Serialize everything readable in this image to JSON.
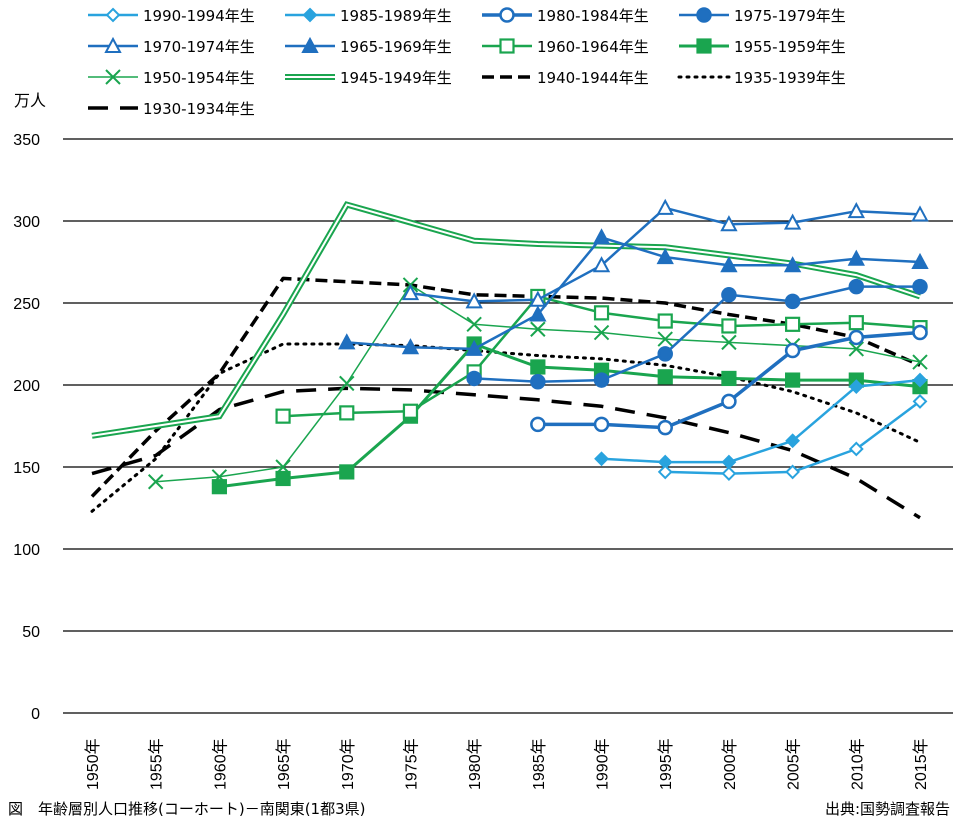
{
  "chart_data": {
    "type": "line",
    "title": "",
    "ylabel": "万人",
    "xlabel": "",
    "ylim": [
      0,
      350
    ],
    "yticks": [
      "0",
      "50",
      "100",
      "150",
      "200",
      "250",
      "300",
      "350"
    ],
    "grid": "horizontal",
    "legend_position": "top",
    "categories": [
      "1950年",
      "1955年",
      "1960年",
      "1965年",
      "1970年",
      "1975年",
      "1980年",
      "1985年",
      "1990年",
      "1995年",
      "2000年",
      "2005年",
      "2010年",
      "2015年"
    ],
    "series": [
      {
        "name": "1990-1994年生",
        "color": "#29a3de",
        "style": "solid",
        "width": 2.5,
        "marker": "diamond-open",
        "values": [
          null,
          null,
          null,
          null,
          null,
          null,
          null,
          null,
          null,
          147,
          146,
          147,
          161,
          190
        ]
      },
      {
        "name": "1985-1989年生",
        "color": "#29a3de",
        "style": "solid",
        "width": 2.5,
        "marker": "diamond",
        "values": [
          null,
          null,
          null,
          null,
          null,
          null,
          null,
          null,
          155,
          153,
          153,
          166,
          199,
          203
        ]
      },
      {
        "name": "1980-1984年生",
        "color": "#1f6fbf",
        "style": "solid",
        "width": 3.5,
        "marker": "circle-open",
        "values": [
          null,
          null,
          null,
          null,
          null,
          null,
          null,
          176,
          176,
          174,
          190,
          221,
          229,
          232
        ]
      },
      {
        "name": "1975-1979年生",
        "color": "#1f6fbf",
        "style": "solid",
        "width": 2.5,
        "marker": "circle",
        "values": [
          null,
          null,
          null,
          null,
          null,
          null,
          204,
          202,
          203,
          219,
          255,
          251,
          260,
          260
        ]
      },
      {
        "name": "1970-1974年生",
        "color": "#1f6fbf",
        "style": "solid",
        "width": 2.5,
        "marker": "triangle-open",
        "values": [
          null,
          null,
          null,
          null,
          null,
          256,
          251,
          252,
          273,
          308,
          298,
          299,
          306,
          304
        ]
      },
      {
        "name": "1965-1969年生",
        "color": "#1f6fbf",
        "style": "solid",
        "width": 2.5,
        "marker": "triangle",
        "values": [
          null,
          null,
          null,
          null,
          226,
          223,
          222,
          243,
          290,
          278,
          273,
          273,
          277,
          275
        ]
      },
      {
        "name": "1960-1964年生",
        "color": "#1aa54f",
        "style": "solid",
        "width": 2.5,
        "marker": "square-open",
        "values": [
          null,
          null,
          null,
          181,
          183,
          184,
          208,
          254,
          244,
          239,
          236,
          237,
          238,
          235
        ]
      },
      {
        "name": "1955-1959年生",
        "color": "#1aa54f",
        "style": "solid",
        "width": 3,
        "marker": "square",
        "values": [
          null,
          null,
          138,
          143,
          147,
          181,
          225,
          211,
          209,
          205,
          204,
          203,
          203,
          199
        ]
      },
      {
        "name": "1950-1954年生",
        "color": "#1aa54f",
        "style": "solid",
        "width": 1.5,
        "marker": "x",
        "values": [
          null,
          141,
          144,
          150,
          201,
          261,
          237,
          234,
          232,
          228,
          226,
          224,
          222,
          214
        ]
      },
      {
        "name": "1945-1949年生",
        "color": "#1aa54f",
        "style": "double",
        "width": 5,
        "marker": "none",
        "values": [
          169,
          175,
          181,
          243,
          310,
          299,
          288,
          286,
          285,
          284,
          279,
          274,
          267,
          254
        ]
      },
      {
        "name": "1940-1944年生",
        "color": "#000000",
        "style": "dash",
        "width": 3.5,
        "marker": "none",
        "values": [
          132,
          172,
          207,
          265,
          263,
          261,
          255,
          254,
          253,
          250,
          243,
          237,
          229,
          212
        ]
      },
      {
        "name": "1935-1939年生",
        "color": "#000000",
        "style": "dot",
        "width": 3,
        "marker": "none",
        "values": [
          123,
          155,
          207,
          225,
          225,
          224,
          221,
          218,
          216,
          212,
          205,
          196,
          183,
          165
        ]
      },
      {
        "name": "1930-1934年生",
        "color": "#000000",
        "style": "longdash",
        "width": 3.5,
        "marker": "none",
        "values": [
          146,
          157,
          185,
          196,
          198,
          197,
          194,
          191,
          187,
          180,
          171,
          160,
          143,
          119
        ]
      }
    ]
  },
  "caption": {
    "figure": "図　年齢層別人口推移(コーホート)－南関東(1都3県)",
    "source": "出典:国勢調査報告"
  }
}
